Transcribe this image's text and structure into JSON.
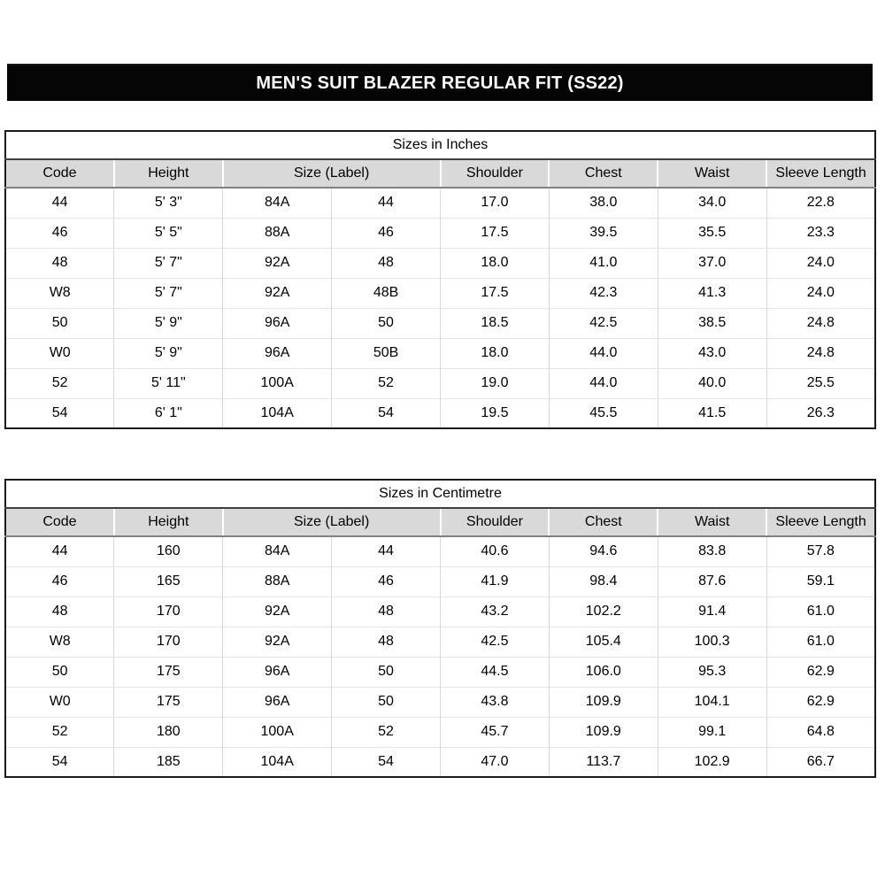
{
  "banner": {
    "title": "MEN'S SUIT BLAZER REGULAR FIT (SS22)"
  },
  "colors": {
    "banner_bg": "#050505",
    "banner_text": "#ffffff",
    "table_border": "#1a1a1a",
    "header_bg": "#d9d9d9",
    "header_underline": "#808080",
    "grid_line": "#d9d9d9",
    "text": "#000000"
  },
  "chart_data": [
    {
      "type": "table",
      "title": "Sizes in Inches",
      "column_headers": [
        "Code",
        "Height",
        "Size (Label)",
        "Shoulder",
        "Chest",
        "Waist",
        "Sleeve Length"
      ],
      "header_spans": [
        1,
        1,
        2,
        1,
        1,
        1,
        1
      ],
      "column_count": 8,
      "rows": [
        [
          "44",
          "5' 3\"",
          "84A",
          "44",
          "17.0",
          "38.0",
          "34.0",
          "22.8"
        ],
        [
          "46",
          "5' 5\"",
          "88A",
          "46",
          "17.5",
          "39.5",
          "35.5",
          "23.3"
        ],
        [
          "48",
          "5' 7\"",
          "92A",
          "48",
          "18.0",
          "41.0",
          "37.0",
          "24.0"
        ],
        [
          "W8",
          "5' 7\"",
          "92A",
          "48B",
          "17.5",
          "42.3",
          "41.3",
          "24.0"
        ],
        [
          "50",
          "5' 9\"",
          "96A",
          "50",
          "18.5",
          "42.5",
          "38.5",
          "24.8"
        ],
        [
          "W0",
          "5' 9\"",
          "96A",
          "50B",
          "18.0",
          "44.0",
          "43.0",
          "24.8"
        ],
        [
          "52",
          "5' 11\"",
          "100A",
          "52",
          "19.0",
          "44.0",
          "40.0",
          "25.5"
        ],
        [
          "54",
          "6' 1\"",
          "104A",
          "54",
          "19.5",
          "45.5",
          "41.5",
          "26.3"
        ]
      ]
    },
    {
      "type": "table",
      "title": "Sizes in Centimetre",
      "column_headers": [
        "Code",
        "Height",
        "Size (Label)",
        "Shoulder",
        "Chest",
        "Waist",
        "Sleeve Length"
      ],
      "header_spans": [
        1,
        1,
        2,
        1,
        1,
        1,
        1
      ],
      "column_count": 8,
      "rows": [
        [
          "44",
          "160",
          "84A",
          "44",
          "40.6",
          "94.6",
          "83.8",
          "57.8"
        ],
        [
          "46",
          "165",
          "88A",
          "46",
          "41.9",
          "98.4",
          "87.6",
          "59.1"
        ],
        [
          "48",
          "170",
          "92A",
          "48",
          "43.2",
          "102.2",
          "91.4",
          "61.0"
        ],
        [
          "W8",
          "170",
          "92A",
          "48",
          "42.5",
          "105.4",
          "100.3",
          "61.0"
        ],
        [
          "50",
          "175",
          "96A",
          "50",
          "44.5",
          "106.0",
          "95.3",
          "62.9"
        ],
        [
          "W0",
          "175",
          "96A",
          "50",
          "43.8",
          "109.9",
          "104.1",
          "62.9"
        ],
        [
          "52",
          "180",
          "100A",
          "52",
          "45.7",
          "109.9",
          "99.1",
          "64.8"
        ],
        [
          "54",
          "185",
          "104A",
          "54",
          "47.0",
          "113.7",
          "102.9",
          "66.7"
        ]
      ]
    }
  ]
}
